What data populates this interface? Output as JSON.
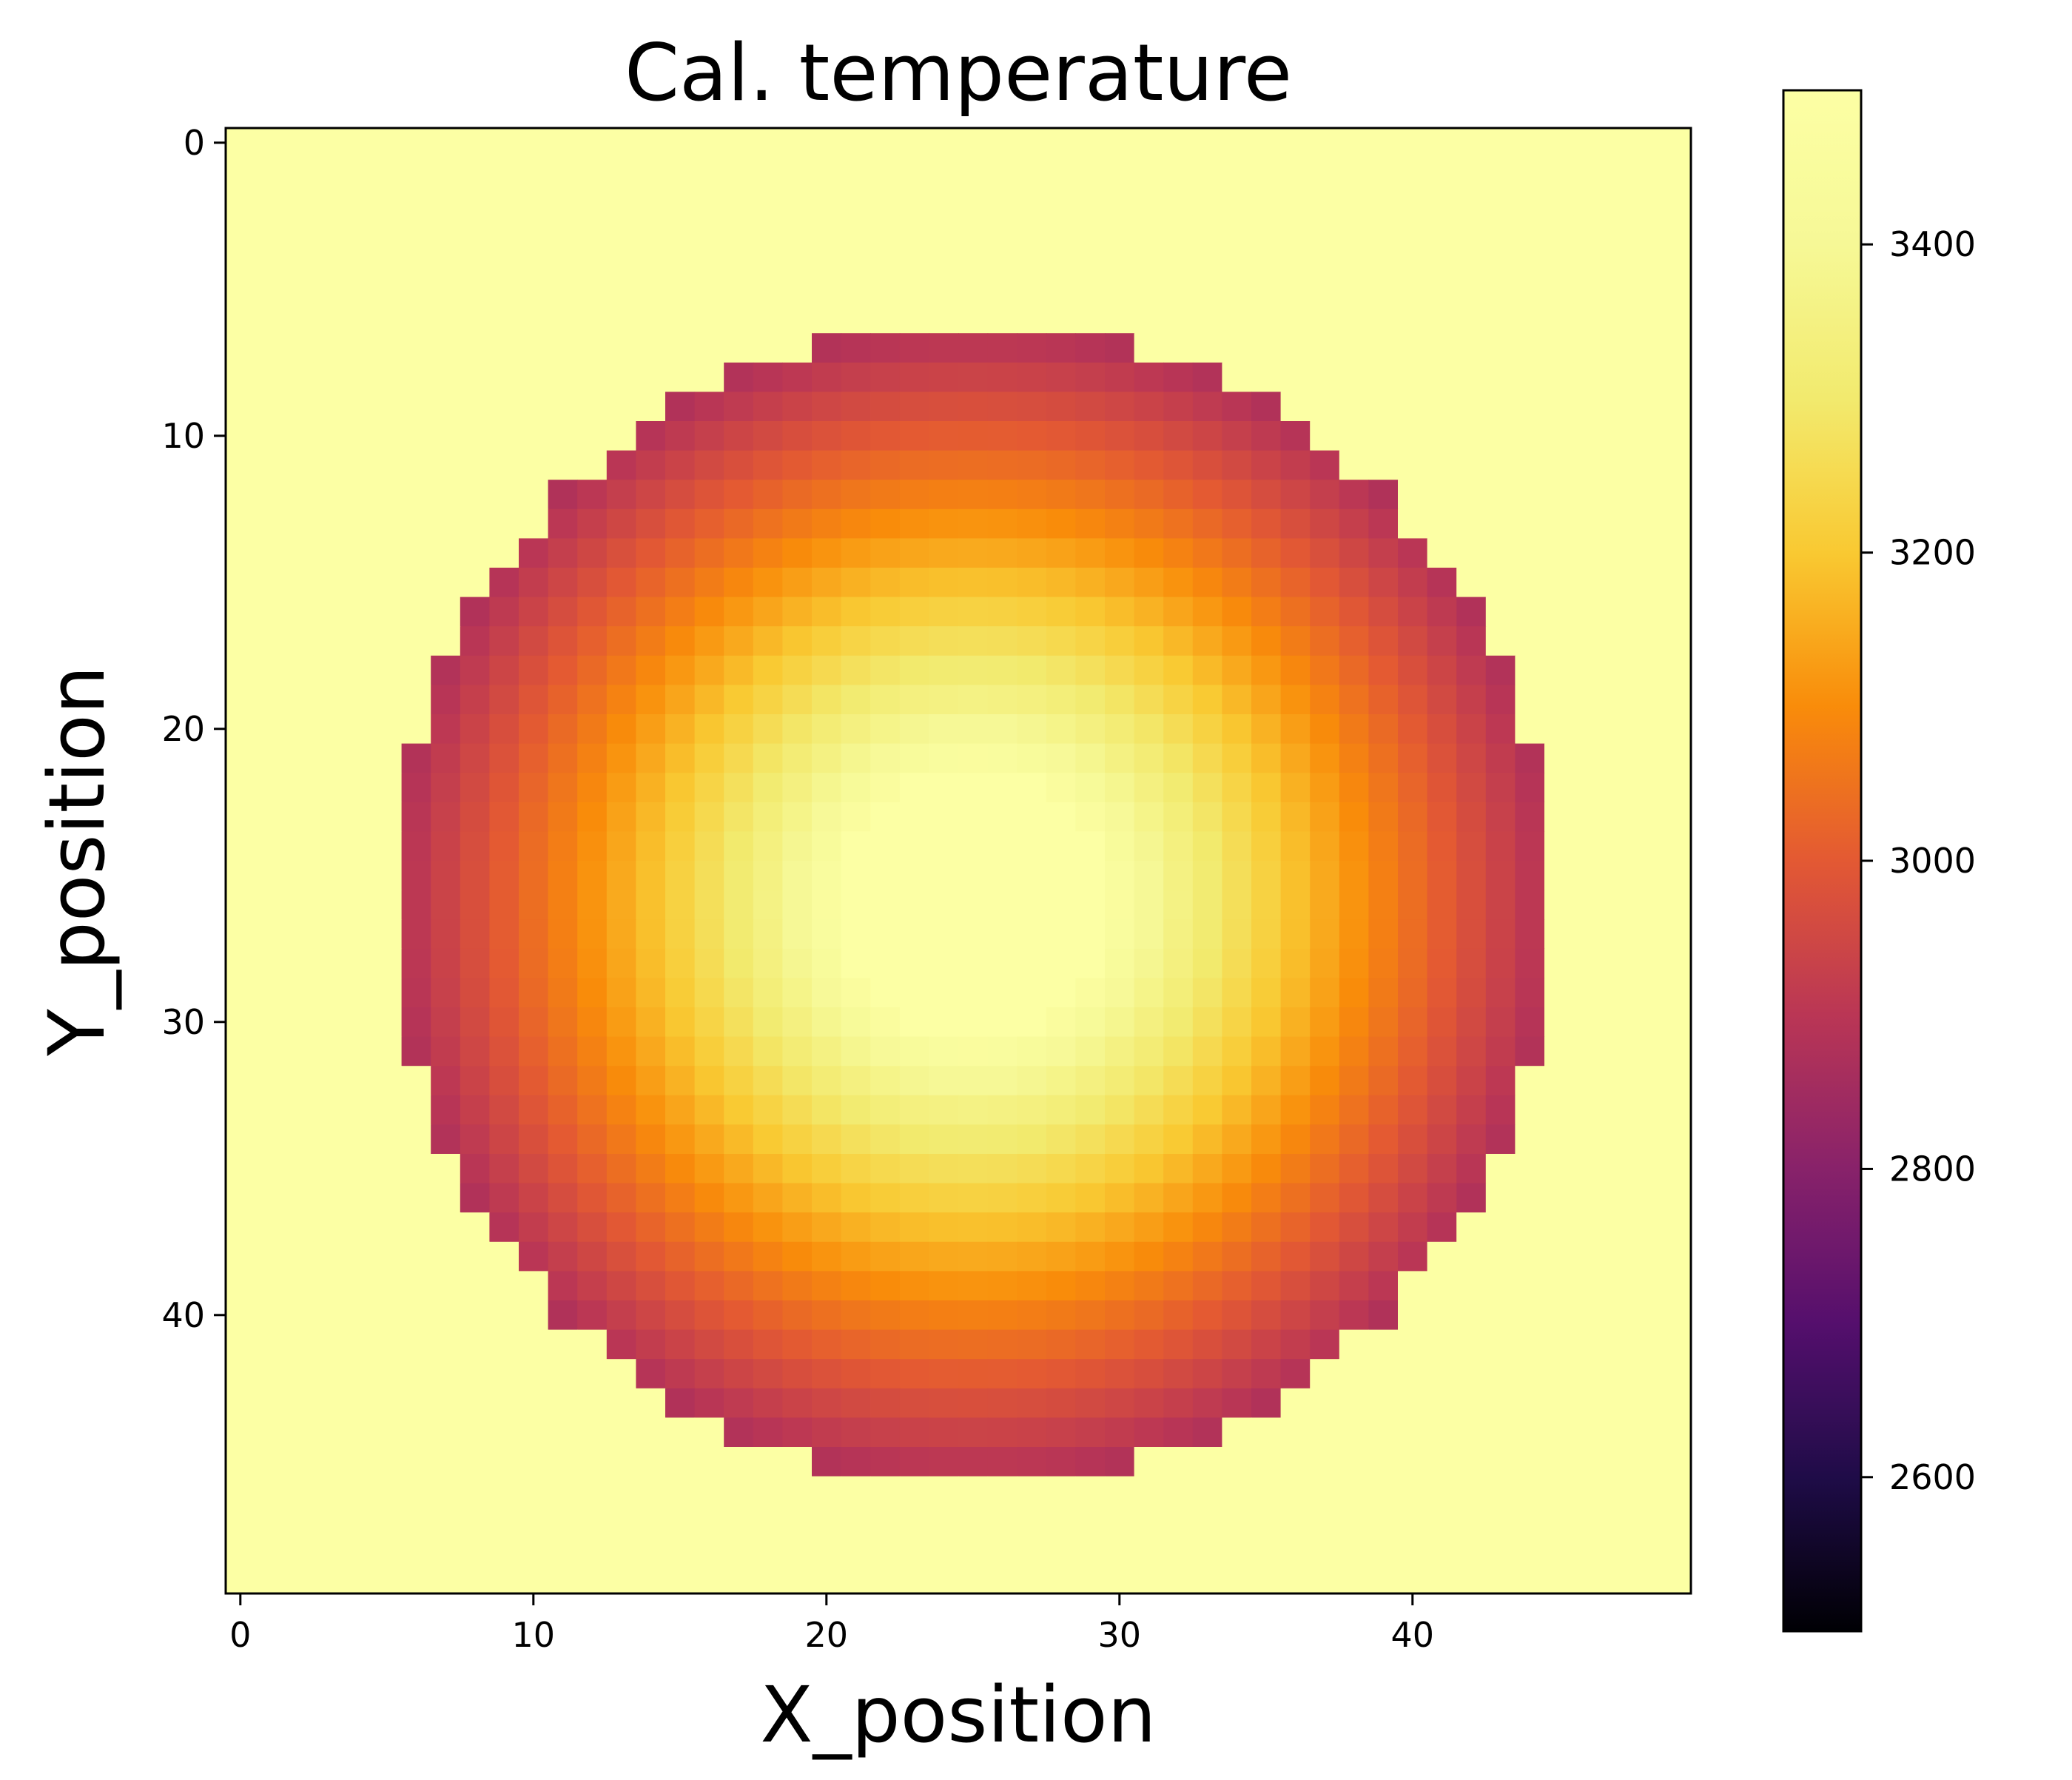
{
  "chart_data": {
    "type": "heatmap",
    "title": "Cal. temperature",
    "xlabel": "X_position",
    "ylabel": "Y_position",
    "grid_shape": [
      50,
      50
    ],
    "xlim": [
      -0.5,
      49.5
    ],
    "ylim": [
      49.5,
      -0.5
    ],
    "xticks": [
      0,
      10,
      20,
      30,
      40
    ],
    "yticks": [
      0,
      10,
      20,
      30,
      40
    ],
    "grid": false,
    "colormap": "inferno",
    "colorbar": {
      "range": [
        2500,
        3500
      ],
      "ticks": [
        2600,
        2800,
        3000,
        3200,
        3400
      ],
      "placement": "right"
    },
    "background_value": 3500,
    "disk": {
      "center": [
        25,
        26
      ],
      "radius_cells": 19.8,
      "value_at_center": 3500,
      "value_at_edge": 2880,
      "plateau_radius_cells": 4.5
    }
  }
}
